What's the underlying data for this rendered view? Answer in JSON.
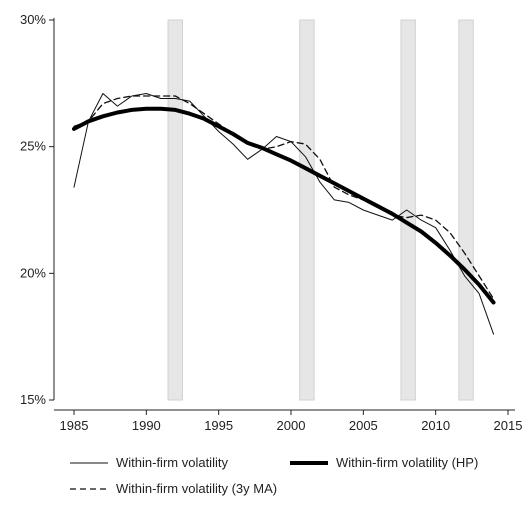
{
  "chart_data": {
    "type": "line",
    "title": "",
    "xlabel": "",
    "ylabel": "",
    "xlim": [
      1985,
      2015
    ],
    "ylim": [
      15,
      30
    ],
    "x_ticks": [
      1985,
      1990,
      1995,
      2000,
      2005,
      2010,
      2015
    ],
    "x_tick_labels": [
      "1985",
      "1990",
      "1995",
      "2000",
      "2005",
      "2010",
      "2015"
    ],
    "y_ticks": [
      15,
      20,
      25,
      30
    ],
    "y_tick_labels": [
      "15%",
      "20%",
      "25%",
      "30%"
    ],
    "recession_bands": [
      [
        1991.5,
        1992.5
      ],
      [
        2000.6,
        2001.6
      ],
      [
        2007.6,
        2008.6
      ],
      [
        2011.6,
        2012.6
      ]
    ],
    "grid": false,
    "legend_position": "bottom",
    "x": [
      1985,
      1986,
      1987,
      1988,
      1989,
      1990,
      1991,
      1992,
      1993,
      1994,
      1995,
      1996,
      1997,
      1998,
      1999,
      2000,
      2001,
      2002,
      2003,
      2004,
      2005,
      2006,
      2007,
      2008,
      2009,
      2010,
      2011,
      2012,
      2013,
      2014
    ],
    "series": [
      {
        "name": "Within-firm volatility",
        "style": "thin",
        "color": "#111111",
        "values": [
          23.4,
          26.0,
          27.1,
          26.6,
          27.0,
          27.1,
          26.9,
          26.9,
          26.8,
          26.2,
          25.6,
          25.1,
          24.5,
          24.9,
          25.4,
          25.2,
          24.6,
          23.6,
          22.9,
          22.8,
          22.5,
          22.3,
          22.1,
          22.5,
          22.1,
          21.8,
          20.9,
          19.9,
          19.2,
          17.6
        ]
      },
      {
        "name": "Within-firm volatility (HP)",
        "style": "thick",
        "color": "#000000",
        "values": [
          25.7,
          26.0,
          26.2,
          26.35,
          26.45,
          26.5,
          26.5,
          26.45,
          26.3,
          26.1,
          25.8,
          25.5,
          25.15,
          24.95,
          24.7,
          24.45,
          24.15,
          23.85,
          23.55,
          23.25,
          22.95,
          22.65,
          22.35,
          22.0,
          21.65,
          21.2,
          20.7,
          20.15,
          19.55,
          18.85
        ]
      },
      {
        "name": "Within-firm volatility (3y MA)",
        "style": "dashed",
        "color": "#111111",
        "values": [
          25.8,
          26.0,
          26.7,
          26.9,
          27.0,
          27.0,
          27.0,
          27.0,
          26.7,
          26.3,
          25.9,
          25.5,
          25.2,
          24.9,
          25.0,
          25.2,
          25.1,
          24.5,
          23.4,
          23.1,
          22.9,
          22.6,
          22.3,
          22.2,
          22.3,
          22.1,
          21.6,
          20.8,
          19.9,
          19.0
        ]
      }
    ]
  }
}
